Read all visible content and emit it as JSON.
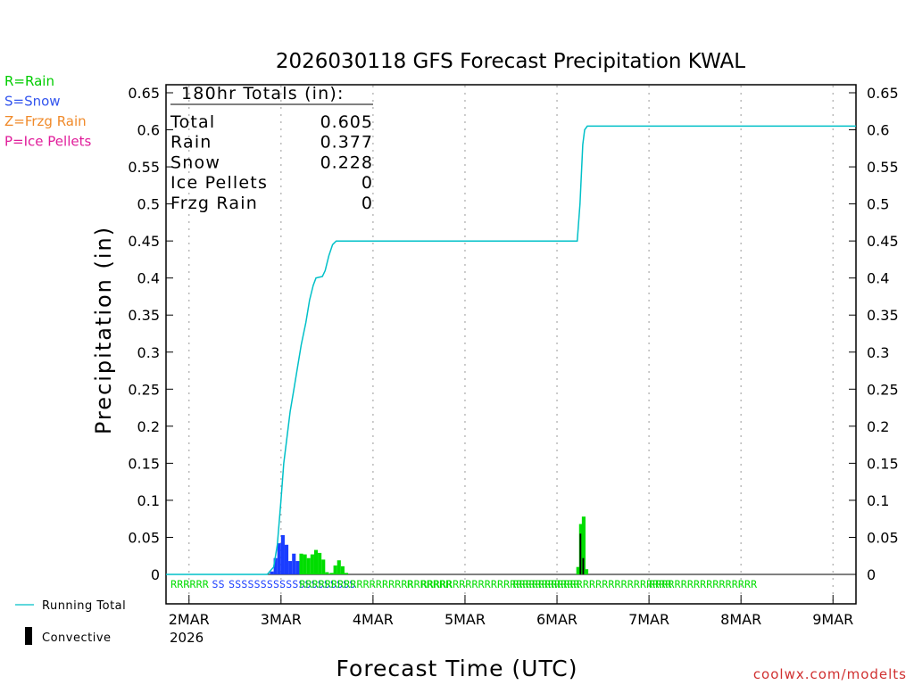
{
  "chart_data": {
    "type": "bar",
    "title": "2026030118 GFS Forecast Precipitation KWAL",
    "xlabel": "Forecast Time (UTC)",
    "ylabel": "Precipitation (in)",
    "ylim": [
      0,
      0.65
    ],
    "y_ticks": [
      "0",
      "0.05",
      "0.1",
      "0.15",
      "0.2",
      "0.25",
      "0.3",
      "0.35",
      "0.4",
      "0.45",
      "0.5",
      "0.55",
      "0.6",
      "0.65"
    ],
    "x_range_days": [
      -0.25,
      7.25
    ],
    "x_ticks": [
      {
        "day": 0,
        "label": "2MAR"
      },
      {
        "day": 1,
        "label": "3MAR"
      },
      {
        "day": 2,
        "label": "4MAR"
      },
      {
        "day": 3,
        "label": "5MAR"
      },
      {
        "day": 4,
        "label": "6MAR"
      },
      {
        "day": 5,
        "label": "7MAR"
      },
      {
        "day": 6,
        "label": "8MAR"
      },
      {
        "day": 7,
        "label": "9MAR"
      }
    ],
    "year_label": "2026",
    "legend_types": [
      {
        "text": "R=Rain",
        "color": "#00cc00"
      },
      {
        "text": "S=Snow",
        "color": "#3355ee"
      },
      {
        "text": "Z=Frzg Rain",
        "color": "#f08a2a"
      },
      {
        "text": "P=Ice Pellets",
        "color": "#e01c9a"
      }
    ],
    "legend_lines": [
      {
        "text": "Running Total",
        "color": "#00c0c8"
      },
      {
        "text": "Convective",
        "color": "#000000"
      }
    ],
    "totals": {
      "header": "180hr Totals (in):",
      "rows": [
        {
          "label": "Total",
          "value": "0.605"
        },
        {
          "label": "Rain",
          "value": "0.377"
        },
        {
          "label": "Snow",
          "value": "0.228"
        },
        {
          "label": "Ice Pellets",
          "value": "0"
        },
        {
          "label": "Frzg Rain",
          "value": "0"
        }
      ]
    },
    "colors": {
      "rain": "#00dd00",
      "snow": "#1a3dff",
      "convective": "#000000",
      "running_total": "#00c0c8"
    },
    "series": [
      {
        "name": "Snow",
        "type": "snow",
        "bars": [
          {
            "day": 0.9,
            "value": 0.004
          },
          {
            "day": 0.94,
            "value": 0.022
          },
          {
            "day": 0.98,
            "value": 0.042
          },
          {
            "day": 1.02,
            "value": 0.053
          },
          {
            "day": 1.06,
            "value": 0.04
          },
          {
            "day": 1.1,
            "value": 0.018
          },
          {
            "day": 1.14,
            "value": 0.028
          },
          {
            "day": 1.18,
            "value": 0.018
          }
        ]
      },
      {
        "name": "Rain",
        "type": "rain",
        "bars": [
          {
            "day": 1.22,
            "value": 0.028
          },
          {
            "day": 1.26,
            "value": 0.027
          },
          {
            "day": 1.3,
            "value": 0.022
          },
          {
            "day": 1.34,
            "value": 0.027
          },
          {
            "day": 1.38,
            "value": 0.033
          },
          {
            "day": 1.42,
            "value": 0.029
          },
          {
            "day": 1.46,
            "value": 0.02
          },
          {
            "day": 1.5,
            "value": 0.003
          },
          {
            "day": 1.55,
            "value": 0.002
          },
          {
            "day": 1.59,
            "value": 0.012
          },
          {
            "day": 1.63,
            "value": 0.019
          },
          {
            "day": 1.67,
            "value": 0.011
          },
          {
            "day": 1.71,
            "value": 0.002
          },
          {
            "day": 4.23,
            "value": 0.01
          },
          {
            "day": 4.26,
            "value": 0.068
          },
          {
            "day": 4.29,
            "value": 0.078
          },
          {
            "day": 4.32,
            "value": 0.007
          }
        ]
      },
      {
        "name": "Convective",
        "type": "convective",
        "bars": [
          {
            "day": 4.255,
            "value": 0.055
          },
          {
            "day": 4.285,
            "value": 0.022
          }
        ]
      },
      {
        "name": "Running Total",
        "type": "line",
        "points": [
          {
            "day": -0.25,
            "value": 0
          },
          {
            "day": 0.85,
            "value": 0
          },
          {
            "day": 0.92,
            "value": 0.01
          },
          {
            "day": 0.96,
            "value": 0.04
          },
          {
            "day": 1.0,
            "value": 0.1
          },
          {
            "day": 1.03,
            "value": 0.15
          },
          {
            "day": 1.06,
            "value": 0.18
          },
          {
            "day": 1.1,
            "value": 0.22
          },
          {
            "day": 1.14,
            "value": 0.25
          },
          {
            "day": 1.18,
            "value": 0.28
          },
          {
            "day": 1.22,
            "value": 0.31
          },
          {
            "day": 1.27,
            "value": 0.34
          },
          {
            "day": 1.31,
            "value": 0.37
          },
          {
            "day": 1.35,
            "value": 0.39
          },
          {
            "day": 1.38,
            "value": 0.4
          },
          {
            "day": 1.45,
            "value": 0.402
          },
          {
            "day": 1.48,
            "value": 0.41
          },
          {
            "day": 1.52,
            "value": 0.43
          },
          {
            "day": 1.56,
            "value": 0.445
          },
          {
            "day": 1.6,
            "value": 0.45
          },
          {
            "day": 4.22,
            "value": 0.45
          },
          {
            "day": 4.25,
            "value": 0.5
          },
          {
            "day": 4.28,
            "value": 0.58
          },
          {
            "day": 4.3,
            "value": 0.6
          },
          {
            "day": 4.33,
            "value": 0.605
          },
          {
            "day": 7.25,
            "value": 0.605
          }
        ]
      }
    ],
    "type_strip": [
      {
        "day": -0.2,
        "text": "RRRRRR",
        "type": "rain"
      },
      {
        "day": 0.25,
        "text": "SS",
        "type": "snow"
      },
      {
        "day": 0.43,
        "text": "SSSSSSSSSSSSSSSSSSSS",
        "type": "snow"
      },
      {
        "day": 1.2,
        "text": "RRRRRRRRRRRRRRRRRRRRRRRR",
        "type": "rain"
      },
      {
        "day": 2.37,
        "text": "R",
        "type": "rain"
      },
      {
        "day": 2.52,
        "text": "RRRRRRRRRRRRRRRRRRRRRRRRR",
        "type": "rain"
      },
      {
        "day": 3.52,
        "text": "RRRRRRRRRRRRRRRRRRRRRRRRR",
        "type": "rain"
      },
      {
        "day": 5.0,
        "text": "RRRRRRRRRRRRRRRRR",
        "type": "rain"
      }
    ],
    "credit": "coolwx.com/modelts"
  }
}
